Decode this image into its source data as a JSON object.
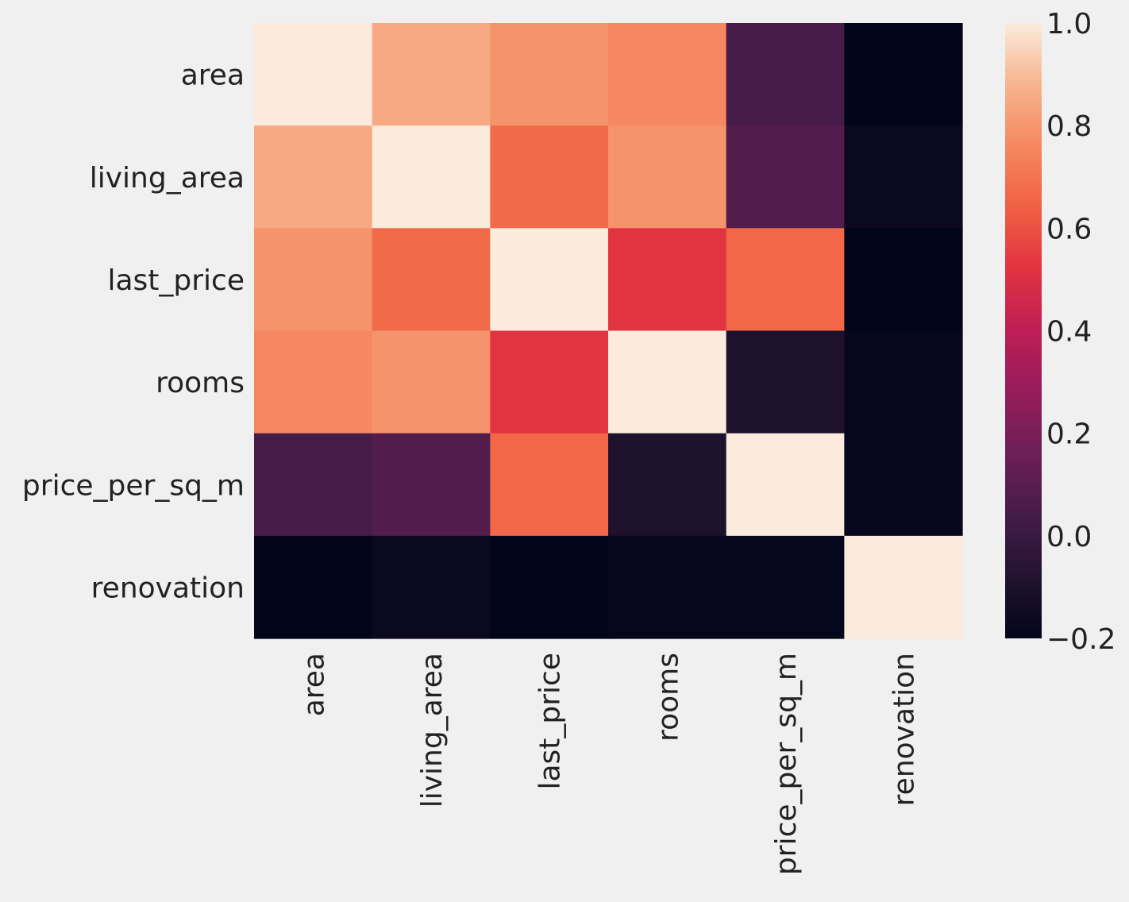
{
  "chart_data": {
    "type": "heatmap",
    "title": "",
    "xlabel": "",
    "ylabel": "",
    "rows": [
      "area",
      "living_area",
      "last_price",
      "rooms",
      "price_per_sq_m",
      "renovation"
    ],
    "columns": [
      "area",
      "living_area",
      "last_price",
      "rooms",
      "price_per_sq_m",
      "renovation"
    ],
    "values": [
      [
        1.0,
        0.85,
        0.79,
        0.76,
        0.05,
        -0.2
      ],
      [
        0.85,
        1.0,
        0.67,
        0.79,
        0.08,
        -0.17
      ],
      [
        0.79,
        0.67,
        1.0,
        0.52,
        0.66,
        -0.21
      ],
      [
        0.76,
        0.79,
        0.52,
        1.0,
        -0.1,
        -0.19
      ],
      [
        0.05,
        0.08,
        0.66,
        -0.1,
        1.0,
        -0.19
      ],
      [
        -0.2,
        -0.17,
        -0.21,
        -0.19,
        -0.19,
        1.0
      ]
    ],
    "colorbar": {
      "range": [
        -0.2,
        1.0
      ],
      "ticks": [
        1.0,
        0.8,
        0.6,
        0.4,
        0.2,
        0.0,
        -0.2
      ],
      "tick_labels": [
        "1.0",
        "0.8",
        "0.6",
        "0.4",
        "0.2",
        "0.0",
        "−0.2"
      ],
      "colormap": "rocket"
    },
    "colors": {
      "background": "#f0f0f0",
      "text": "#222222"
    }
  }
}
